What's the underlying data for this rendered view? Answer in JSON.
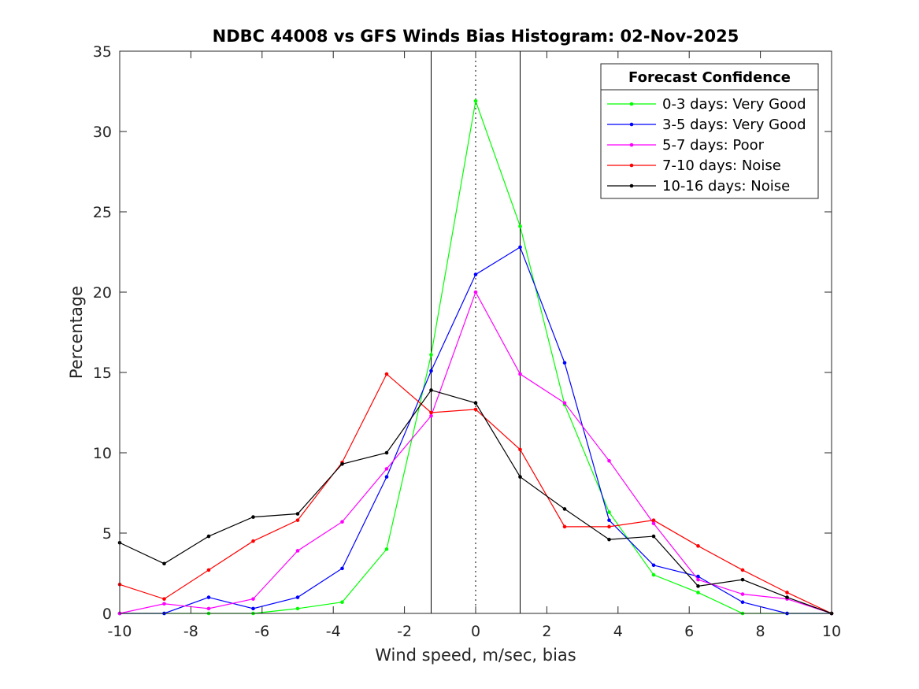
{
  "chart_data": {
    "type": "line",
    "title": "NDBC 44008 vs GFS Winds Bias Histogram: 02-Nov-2025",
    "xlabel": "Wind speed, m/sec, bias",
    "ylabel": "Percentage",
    "xlim": [
      -10,
      10
    ],
    "ylim": [
      0,
      35
    ],
    "xticks": [
      -10,
      -8,
      -6,
      -4,
      -2,
      0,
      2,
      4,
      6,
      8,
      10
    ],
    "yticks": [
      0,
      5,
      10,
      15,
      20,
      25,
      30,
      35
    ],
    "vertical_lines": [
      {
        "x": -1.25,
        "style": "solid"
      },
      {
        "x": 0,
        "style": "dotted"
      },
      {
        "x": 1.25,
        "style": "solid"
      }
    ],
    "legend": {
      "title": "Forecast Confidence",
      "position": "top-right"
    },
    "x": [
      -10,
      -8.75,
      -7.5,
      -6.25,
      -5,
      -3.75,
      -2.5,
      -1.25,
      0,
      1.25,
      2.5,
      3.75,
      5,
      6.25,
      7.5,
      8.75,
      10
    ],
    "series": [
      {
        "name": "0-3 days: Very Good",
        "color": "#00ff00",
        "values": [
          0,
          0,
          0,
          0,
          0.3,
          0.7,
          4.0,
          16.1,
          31.9,
          24.1,
          13.0,
          6.3,
          2.4,
          1.3,
          0,
          0,
          0
        ]
      },
      {
        "name": "3-5 days: Very Good",
        "color": "#0000ff",
        "values": [
          0,
          0,
          1.0,
          0.3,
          1.0,
          2.8,
          8.5,
          15.1,
          21.1,
          22.8,
          15.6,
          5.8,
          3.0,
          2.3,
          0.7,
          0,
          0
        ]
      },
      {
        "name": "5-7 days: Poor",
        "color": "#ff00ff",
        "values": [
          0,
          0.6,
          0.3,
          0.9,
          3.9,
          5.7,
          9.0,
          12.3,
          20.0,
          14.9,
          13.1,
          9.5,
          5.6,
          2.1,
          1.2,
          0.9,
          0
        ]
      },
      {
        "name": "7-10 days: Noise",
        "color": "#ff0000",
        "values": [
          1.8,
          0.9,
          2.7,
          4.5,
          5.8,
          9.4,
          14.9,
          12.5,
          12.7,
          10.2,
          5.4,
          5.4,
          5.8,
          4.2,
          2.7,
          1.3,
          0
        ]
      },
      {
        "name": "10-16 days: Noise",
        "color": "#000000",
        "values": [
          4.4,
          3.1,
          4.8,
          6.0,
          6.2,
          9.3,
          10.0,
          13.9,
          13.1,
          8.5,
          6.5,
          4.6,
          4.8,
          1.7,
          2.1,
          1.0,
          0
        ]
      }
    ]
  }
}
